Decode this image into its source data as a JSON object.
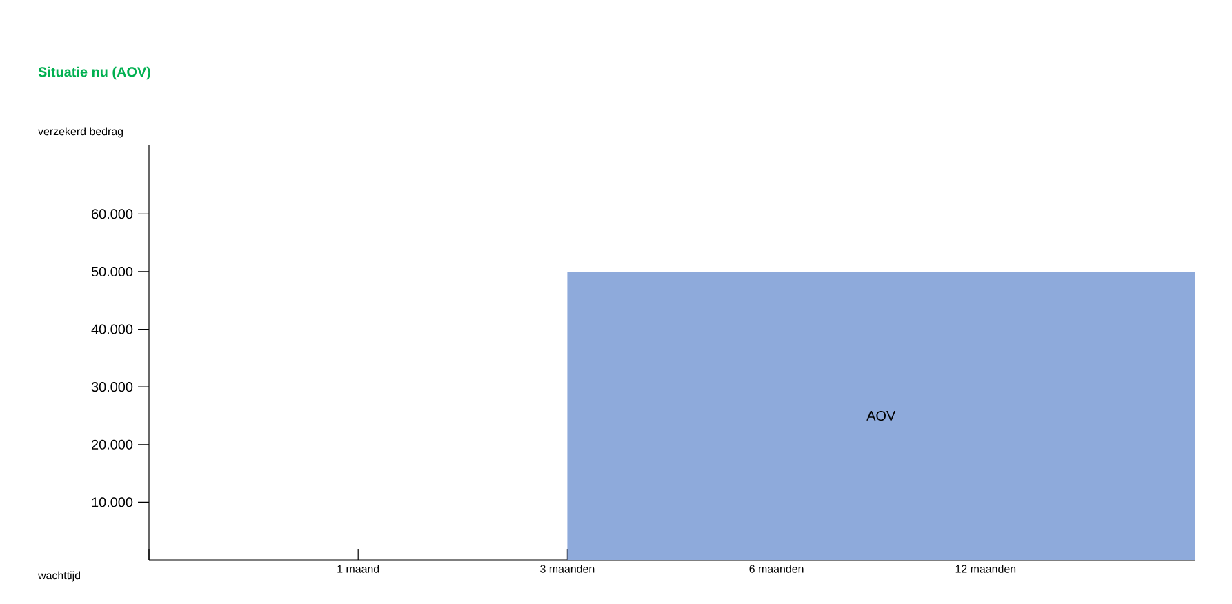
{
  "chart_data": {
    "type": "area",
    "title": "Situatie nu (AOV)",
    "xlabel": "wachttijd",
    "ylabel": "verzekerd bedrag",
    "categories": [
      null,
      "1 maand",
      "3 maanden",
      "6 maanden",
      "12 maanden",
      null
    ],
    "series": [
      {
        "name": "AOV",
        "color": "#8eaadb",
        "values": [
          null,
          null,
          50000,
          50000,
          50000,
          50000
        ]
      }
    ],
    "ylim": [
      0,
      72000
    ],
    "yticks": [
      {
        "value": 10000,
        "label": "10.000"
      },
      {
        "value": 20000,
        "label": "20.000"
      },
      {
        "value": 30000,
        "label": "30.000"
      },
      {
        "value": 40000,
        "label": "40.000"
      },
      {
        "value": 50000,
        "label": "50.000"
      },
      {
        "value": 60000,
        "label": "60.000"
      }
    ],
    "grid": false
  }
}
